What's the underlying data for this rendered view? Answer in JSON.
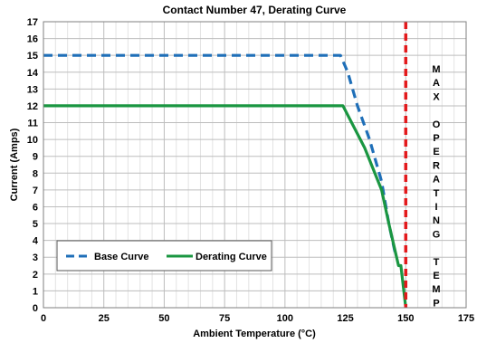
{
  "chart_data": {
    "type": "line",
    "title": "Contact Number 47, Derating Curve",
    "xlabel": "Ambient Temperature (°C)",
    "ylabel": "Current (Amps)",
    "xlim": [
      0,
      175
    ],
    "ylim": [
      0,
      17
    ],
    "x_ticks": [
      "0",
      "25",
      "50",
      "75",
      "100",
      "125",
      "150",
      "175"
    ],
    "y_ticks": [
      "0",
      "1",
      "2",
      "3",
      "4",
      "5",
      "6",
      "7",
      "8",
      "9",
      "10",
      "11",
      "12",
      "13",
      "14",
      "15",
      "16",
      "17"
    ],
    "grid": true,
    "legend_position": "bottom-left",
    "series": [
      {
        "name": "Base Curve",
        "color": "#1f6fb8",
        "style": "dashed",
        "points": [
          [
            0,
            15
          ],
          [
            123,
            15
          ],
          [
            126,
            14
          ],
          [
            130,
            12
          ],
          [
            135,
            10
          ],
          [
            140,
            7.5
          ],
          [
            143,
            5
          ],
          [
            146,
            3
          ]
        ]
      },
      {
        "name": "Derating Curve",
        "color": "#1a9641",
        "style": "solid",
        "points": [
          [
            0,
            12
          ],
          [
            124,
            12
          ],
          [
            133,
            9.5
          ],
          [
            140,
            7
          ],
          [
            143,
            5
          ],
          [
            147,
            2.5
          ],
          [
            148,
            2.5
          ],
          [
            150,
            0
          ]
        ]
      }
    ],
    "annotation": {
      "text": [
        "M",
        "A",
        "X",
        "",
        "O",
        "P",
        "E",
        "R",
        "A",
        "T",
        "I",
        "N",
        "G",
        "",
        "T",
        "E",
        "M",
        "P"
      ],
      "x": 150,
      "color": "#e31a1c",
      "style": "dashed"
    }
  }
}
